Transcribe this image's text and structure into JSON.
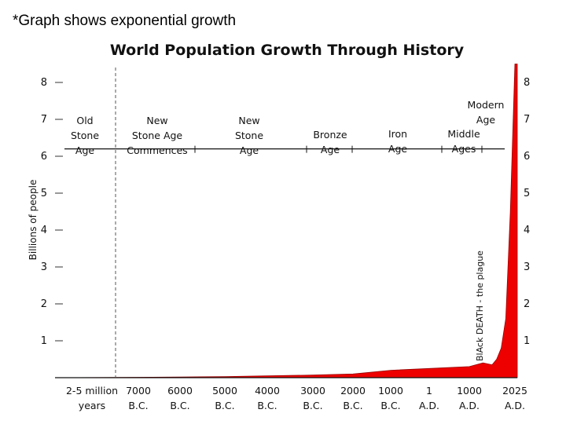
{
  "caption": "*Graph shows exponential growth",
  "chart_data": {
    "type": "area",
    "title": "World Population Growth Through History",
    "ylabel": "Billions of people",
    "ylim": [
      0,
      8.5
    ],
    "y_ticks": [
      "1",
      "2",
      "3",
      "4",
      "5",
      "6",
      "7",
      "8"
    ],
    "x_ticks": [
      {
        "line1": "2-5 million",
        "line2": "years"
      },
      {
        "line1": "7000",
        "line2": "B.C."
      },
      {
        "line1": "6000",
        "line2": "B.C."
      },
      {
        "line1": "5000",
        "line2": "B.C."
      },
      {
        "line1": "4000",
        "line2": "B.C."
      },
      {
        "line1": "3000",
        "line2": "B.C."
      },
      {
        "line1": "2000",
        "line2": "B.C."
      },
      {
        "line1": "1000",
        "line2": "B.C."
      },
      {
        "line1": "1",
        "line2": "A.D."
      },
      {
        "line1": "1000",
        "line2": "A.D."
      },
      {
        "line1": "2025",
        "line2": "A.D."
      }
    ],
    "eras": [
      {
        "lines": [
          "Old",
          "Stone",
          "Age"
        ]
      },
      {
        "lines": [
          "New",
          "Stone Age",
          "Commences"
        ]
      },
      {
        "lines": [
          "New",
          "Stone",
          "Age"
        ]
      },
      {
        "lines": [
          "Bronze",
          "Age"
        ]
      },
      {
        "lines": [
          "Iron",
          "Age"
        ]
      },
      {
        "lines": [
          "Middle",
          "Ages"
        ]
      },
      {
        "lines": [
          "Modern",
          "Age"
        ]
      }
    ],
    "annotation": "BlAck DEATH - the plague",
    "series": [
      {
        "x_tick_index": [
          0,
          1,
          2,
          3,
          4,
          5,
          6,
          7,
          8,
          9,
          9.3,
          9.5,
          9.6,
          9.7,
          9.8,
          9.9,
          10
        ],
        "values": [
          0.0,
          0.01,
          0.02,
          0.03,
          0.05,
          0.07,
          0.1,
          0.2,
          0.25,
          0.3,
          0.4,
          0.35,
          0.5,
          0.8,
          1.6,
          4.5,
          8.5
        ],
        "color": "#ee0000"
      }
    ]
  }
}
